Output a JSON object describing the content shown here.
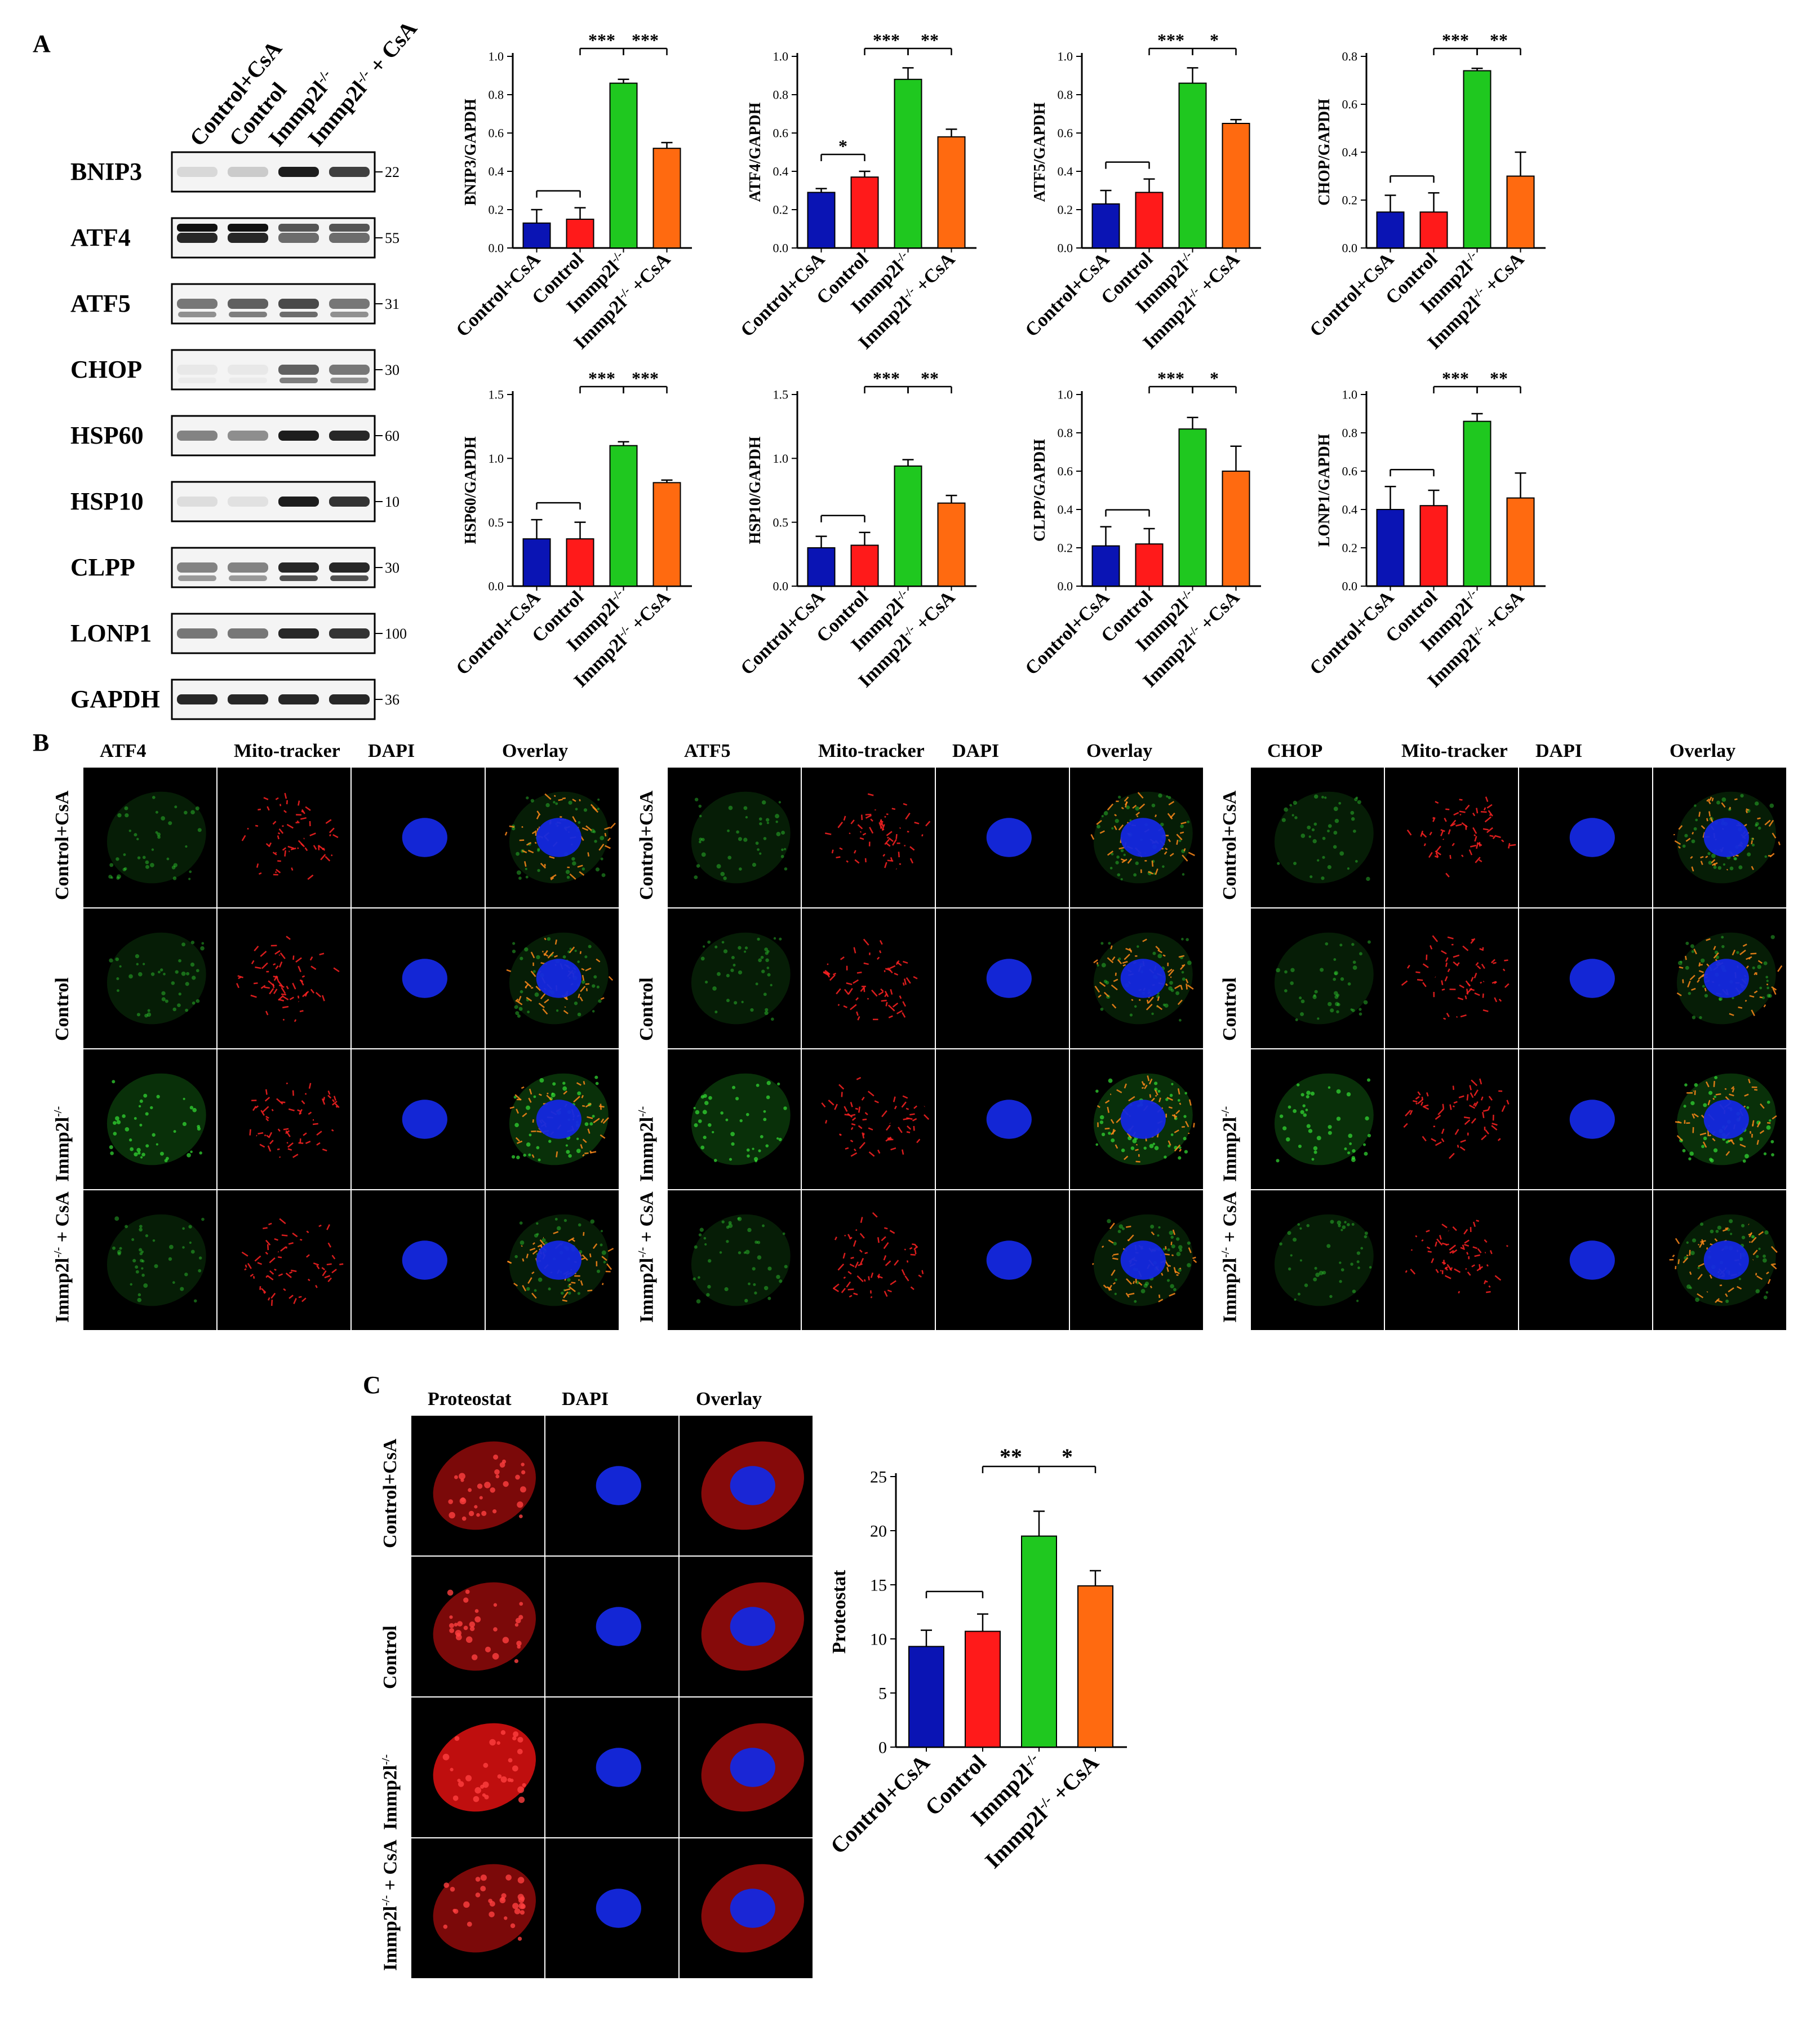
{
  "panels": {
    "a": "A",
    "b": "B",
    "c": "C"
  },
  "blot": {
    "lane_labels": [
      "Control+CsA",
      "Control",
      "Immp2l-/-",
      "Immp2l-/- + CsA"
    ],
    "proteins": [
      {
        "name": "BNIP3",
        "kda": "22"
      },
      {
        "name": "ATF4",
        "kda": "55"
      },
      {
        "name": "ATF5",
        "kda": "31"
      },
      {
        "name": "CHOP",
        "kda": "30"
      },
      {
        "name": "HSP60",
        "kda": "60"
      },
      {
        "name": "HSP10",
        "kda": "10"
      },
      {
        "name": "CLPP",
        "kda": "30"
      },
      {
        "name": "LONP1",
        "kda": "100"
      },
      {
        "name": "GAPDH",
        "kda": "36"
      }
    ]
  },
  "colors": {
    "blue": "#0a14b4",
    "red": "#ff1a1a",
    "green": "#1fc81f",
    "orange": "#ff6a10"
  },
  "chart_data": [
    {
      "type": "bar",
      "ylabel": "BNIP3/GAPDH",
      "categories": [
        "Control+CsA",
        "Control",
        "Immp2l-/-",
        "Immp2l-/- +CsA"
      ],
      "values": [
        0.13,
        0.15,
        0.86,
        0.52
      ],
      "errors": [
        0.07,
        0.06,
        0.02,
        0.03
      ],
      "ylim": [
        0,
        1.0
      ],
      "yticks": [
        "0.0",
        "0.2",
        "0.4",
        "0.6",
        "0.8",
        "1.0"
      ],
      "sig": [
        "",
        "***",
        "***"
      ]
    },
    {
      "type": "bar",
      "ylabel": "ATF4/GAPDH",
      "categories": [
        "Control+CsA",
        "Control",
        "Immp2l-/-",
        "Immp2l-/- +CsA"
      ],
      "values": [
        0.29,
        0.37,
        0.88,
        0.58
      ],
      "errors": [
        0.02,
        0.03,
        0.06,
        0.04
      ],
      "ylim": [
        0,
        1.0
      ],
      "yticks": [
        "0.0",
        "0.2",
        "0.4",
        "0.6",
        "0.8",
        "1.0"
      ],
      "sig": [
        "*",
        "***",
        "**"
      ]
    },
    {
      "type": "bar",
      "ylabel": "ATF5/GAPDH",
      "categories": [
        "Control+CsA",
        "Control",
        "Immp2l-/-",
        "Immp2l-/- +CsA"
      ],
      "values": [
        0.23,
        0.29,
        0.86,
        0.65
      ],
      "errors": [
        0.07,
        0.07,
        0.08,
        0.02
      ],
      "ylim": [
        0,
        1.0
      ],
      "yticks": [
        "0.0",
        "0.2",
        "0.4",
        "0.6",
        "0.8",
        "1.0"
      ],
      "sig": [
        "",
        "***",
        "*"
      ]
    },
    {
      "type": "bar",
      "ylabel": "CHOP/GAPDH",
      "categories": [
        "Control+CsA",
        "Control",
        "Immp2l-/-",
        "Immp2l-/- +CsA"
      ],
      "values": [
        0.15,
        0.15,
        0.74,
        0.3
      ],
      "errors": [
        0.07,
        0.08,
        0.01,
        0.1
      ],
      "ylim": [
        0,
        0.8
      ],
      "yticks": [
        "0.0",
        "0.2",
        "0.4",
        "0.6",
        "0.8"
      ],
      "sig": [
        "",
        "***",
        "**"
      ]
    },
    {
      "type": "bar",
      "ylabel": "HSP60/GAPDH",
      "categories": [
        "Control+CsA",
        "Control",
        "Immp2l-/-",
        "Immp2l-/- +CsA"
      ],
      "values": [
        0.37,
        0.37,
        1.1,
        0.81
      ],
      "errors": [
        0.15,
        0.13,
        0.03,
        0.02
      ],
      "ylim": [
        0,
        1.5
      ],
      "yticks": [
        "0.0",
        "0.5",
        "1.0",
        "1.5"
      ],
      "sig": [
        "",
        "***",
        "***"
      ]
    },
    {
      "type": "bar",
      "ylabel": "HSP10/GAPDH",
      "categories": [
        "Control+CsA",
        "Control",
        "Immp2l-/-",
        "Immp2l-/- +CsA"
      ],
      "values": [
        0.3,
        0.32,
        0.94,
        0.65
      ],
      "errors": [
        0.09,
        0.1,
        0.05,
        0.06
      ],
      "ylim": [
        0,
        1.5
      ],
      "yticks": [
        "0.0",
        "0.5",
        "1.0",
        "1.5"
      ],
      "sig": [
        "",
        "***",
        "**"
      ]
    },
    {
      "type": "bar",
      "ylabel": "CLPP/GAPDH",
      "categories": [
        "Control+CsA",
        "Control",
        "Immp2l-/-",
        "Immp2l-/- +CsA"
      ],
      "values": [
        0.21,
        0.22,
        0.82,
        0.6
      ],
      "errors": [
        0.1,
        0.08,
        0.06,
        0.13
      ],
      "ylim": [
        0,
        1.0
      ],
      "yticks": [
        "0.0",
        "0.2",
        "0.4",
        "0.6",
        "0.8",
        "1.0"
      ],
      "sig": [
        "",
        "***",
        "*"
      ]
    },
    {
      "type": "bar",
      "ylabel": "LONP1/GAPDH",
      "categories": [
        "Control+CsA",
        "Control",
        "Immp2l-/-",
        "Immp2l-/- +CsA"
      ],
      "values": [
        0.4,
        0.42,
        0.86,
        0.46
      ],
      "errors": [
        0.12,
        0.08,
        0.04,
        0.13
      ],
      "ylim": [
        0,
        1.0
      ],
      "yticks": [
        "0.0",
        "0.2",
        "0.4",
        "0.6",
        "0.8",
        "1.0"
      ],
      "sig": [
        "",
        "***",
        "**"
      ]
    },
    {
      "type": "bar",
      "ylabel": "Proteostat",
      "categories": [
        "Control+CsA",
        "Control",
        "Immp2l-/-",
        "Immp2l-/- +CsA"
      ],
      "values": [
        9.3,
        10.7,
        19.5,
        14.9
      ],
      "errors": [
        1.5,
        1.6,
        2.3,
        1.4
      ],
      "ylim": [
        0,
        25
      ],
      "yticks": [
        "0",
        "5",
        "10",
        "15",
        "20",
        "25"
      ],
      "sig": [
        "",
        "**",
        "*"
      ]
    }
  ],
  "if_panels": [
    {
      "headers": [
        "ATF4",
        "Mito-tracker",
        "DAPI",
        "Overlay"
      ],
      "stain": "green"
    },
    {
      "headers": [
        "ATF5",
        "Mito-tracker",
        "DAPI",
        "Overlay"
      ],
      "stain": "green"
    },
    {
      "headers": [
        "CHOP",
        "Mito-tracker",
        "DAPI",
        "Overlay"
      ],
      "stain": "green"
    }
  ],
  "if_rows": [
    "Control+CsA",
    "Control",
    "Immp2l-/-",
    "Immp2l-/- + CsA"
  ],
  "proteostat_panel": {
    "headers": [
      "Proteostat",
      "DAPI",
      "Overlay"
    ]
  }
}
